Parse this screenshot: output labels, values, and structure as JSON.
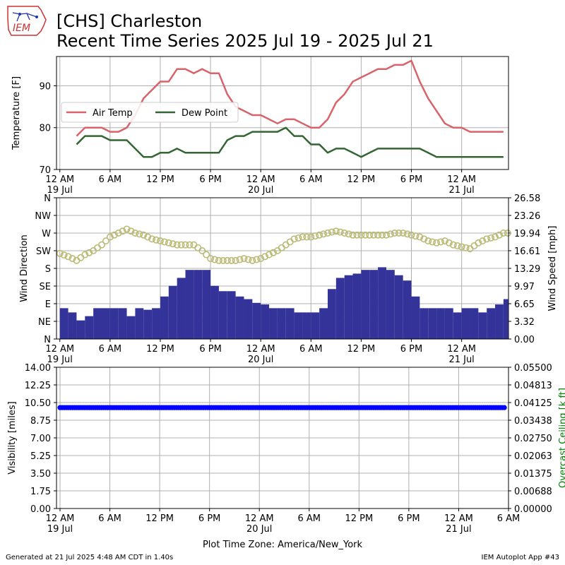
{
  "header": {
    "logo_text": "IEM",
    "title_line1": "[CHS] Charleston",
    "title_line2": "Recent Time Series 2025 Jul 19 - 2025 Jul 21"
  },
  "footer": {
    "generated": "Generated at 21 Jul 2025 4:48 AM CDT in 1.40s",
    "app": "IEM Autoplot App #43",
    "timezone": "Plot Time Zone: America/New_York"
  },
  "colors": {
    "air_temp": "#d9636b",
    "dew_point": "#336633",
    "wind_dir": "#bbbb77",
    "wind_speed": "#333399",
    "visibility": "#0000ff",
    "ceiling_axis": "#008000",
    "grid": "#b0b0b0"
  },
  "chart_data": [
    {
      "type": "line",
      "ylabel": "Temperature [F]",
      "ylim": [
        70,
        97
      ],
      "yticks": [
        70,
        80,
        90
      ],
      "xlim_hours": [
        -0.4,
        53.6
      ],
      "xticks": [
        {
          "hour": 0,
          "label": "12 AM",
          "sublabel": "19 Jul"
        },
        {
          "hour": 6,
          "label": "6 AM",
          "sublabel": ""
        },
        {
          "hour": 12,
          "label": "12 PM",
          "sublabel": ""
        },
        {
          "hour": 18,
          "label": "6 PM",
          "sublabel": ""
        },
        {
          "hour": 24,
          "label": "12 AM",
          "sublabel": "20 Jul"
        },
        {
          "hour": 30,
          "label": "6 AM",
          "sublabel": ""
        },
        {
          "hour": 36,
          "label": "12 PM",
          "sublabel": ""
        },
        {
          "hour": 42,
          "label": "6 PM",
          "sublabel": ""
        },
        {
          "hour": 48,
          "label": "12 AM",
          "sublabel": "21 Jul"
        }
      ],
      "grid": true,
      "legend_position": "center-left",
      "series": [
        {
          "name": "Air Temp",
          "x": [
            2,
            3,
            4,
            5,
            6,
            7,
            8,
            9,
            10,
            11,
            12,
            13,
            14,
            15,
            16,
            17,
            18,
            19,
            20,
            21,
            22,
            23,
            24,
            25,
            26,
            27,
            28,
            29,
            30,
            31,
            32,
            33,
            34,
            35,
            36,
            37,
            38,
            39,
            40,
            41,
            42,
            43,
            44,
            45,
            46,
            47,
            48,
            49,
            50,
            51,
            52,
            53
          ],
          "y": [
            78,
            80,
            80,
            80,
            79,
            79,
            80,
            83,
            87,
            89,
            91,
            91,
            94,
            94,
            93,
            94,
            93,
            93,
            88,
            85,
            84,
            83,
            83,
            82,
            81,
            82,
            82,
            81,
            80,
            80,
            82,
            86,
            88,
            91,
            92,
            93,
            94,
            94,
            95,
            95,
            96,
            91,
            87,
            84,
            81,
            80,
            80,
            79,
            79,
            79,
            79,
            79
          ]
        },
        {
          "name": "Dew Point",
          "x": [
            2,
            3,
            4,
            5,
            6,
            7,
            8,
            9,
            10,
            11,
            12,
            13,
            14,
            15,
            16,
            17,
            18,
            19,
            20,
            21,
            22,
            23,
            24,
            25,
            26,
            27,
            28,
            29,
            30,
            31,
            32,
            33,
            34,
            35,
            36,
            37,
            38,
            39,
            40,
            41,
            42,
            43,
            44,
            45,
            46,
            47,
            48,
            49,
            50,
            51,
            52,
            53
          ],
          "y": [
            76,
            78,
            78,
            78,
            77,
            77,
            77,
            75,
            73,
            73,
            74,
            74,
            75,
            74,
            74,
            74,
            74,
            74,
            77,
            78,
            78,
            79,
            79,
            79,
            79,
            80,
            78,
            78,
            76,
            76,
            74,
            75,
            75,
            74,
            73,
            74,
            75,
            75,
            75,
            75,
            75,
            75,
            74,
            73,
            73,
            73,
            73,
            73,
            73,
            73,
            73,
            73
          ]
        }
      ]
    },
    {
      "type": "bar",
      "ylabel": "Wind Direction",
      "ylabel_right": "Wind Speed [mph]",
      "ylim": [
        0,
        360
      ],
      "ylim_right": [
        0,
        26.58
      ],
      "direction_ticks": [
        "N",
        "NE",
        "E",
        "SE",
        "S",
        "SW",
        "W",
        "NW",
        "N"
      ],
      "speed_ticks": [
        "0.00",
        "3.32",
        "6.65",
        "9.97",
        "13.29",
        "16.61",
        "19.94",
        "23.26",
        "26.58"
      ],
      "grid": true,
      "series": [
        {
          "name": "Wind Speed",
          "x": [
            0,
            1,
            2,
            3,
            4,
            5,
            6,
            7,
            8,
            9,
            10,
            11,
            12,
            13,
            14,
            15,
            16,
            17,
            18,
            19,
            20,
            21,
            22,
            23,
            24,
            25,
            26,
            27,
            28,
            29,
            30,
            31,
            32,
            33,
            34,
            35,
            36,
            37,
            38,
            39,
            40,
            41,
            42,
            43,
            44,
            45,
            46,
            47,
            48,
            49,
            50,
            51,
            52,
            53
          ],
          "y": [
            5.8,
            5,
            3.5,
            4.3,
            5.8,
            5.8,
            5.8,
            5.8,
            4.3,
            5.8,
            5.5,
            5.8,
            8,
            10,
            11.5,
            13,
            13,
            13,
            10,
            9,
            9,
            8,
            7.5,
            6.8,
            6.5,
            5.8,
            5.8,
            5.8,
            5,
            5,
            5,
            5.8,
            9.4,
            11.5,
            12,
            12.3,
            13,
            13,
            13.5,
            13,
            12,
            11,
            8,
            5.8,
            5.8,
            5.8,
            5.8,
            5,
            5.8,
            5.8,
            5,
            5.8,
            6.5,
            7.5
          ]
        },
        {
          "name": "Wind Direction",
          "x": [
            0,
            1,
            2,
            3,
            4,
            5,
            6,
            7,
            8,
            9,
            10,
            11,
            12,
            13,
            14,
            15,
            16,
            17,
            18,
            19,
            20,
            21,
            22,
            23,
            24,
            25,
            26,
            27,
            28,
            29,
            30,
            31,
            32,
            33,
            34,
            35,
            36,
            37,
            38,
            39,
            40,
            41,
            42,
            43,
            44,
            45,
            46,
            47,
            48,
            49,
            50,
            51,
            52,
            53
          ],
          "y": [
            218,
            210,
            200,
            215,
            225,
            240,
            260,
            270,
            280,
            270,
            265,
            255,
            250,
            245,
            240,
            240,
            240,
            225,
            205,
            200,
            200,
            200,
            205,
            200,
            205,
            215,
            225,
            240,
            255,
            260,
            260,
            265,
            270,
            275,
            270,
            265,
            265,
            265,
            265,
            265,
            270,
            270,
            265,
            260,
            250,
            245,
            250,
            240,
            235,
            230,
            245,
            255,
            260,
            270
          ]
        }
      ]
    },
    {
      "type": "scatter",
      "ylabel": "Visibility [miles]",
      "ylabel_right": "Overcast Ceiling [k ft]",
      "ylim": [
        0,
        14
      ],
      "yticks": [
        "0.00",
        "1.75",
        "3.50",
        "5.25",
        "7.00",
        "8.75",
        "10.50",
        "12.25",
        "14.00"
      ],
      "yticks_right": [
        "0.00000",
        "0.00688",
        "0.01375",
        "0.02063",
        "0.02750",
        "0.03438",
        "0.04125",
        "0.04813",
        "0.05500"
      ],
      "xticks": [
        {
          "hour": 0,
          "label": "12 AM",
          "sublabel": "19 Jul"
        },
        {
          "hour": 6,
          "label": "6 AM",
          "sublabel": ""
        },
        {
          "hour": 12,
          "label": "12 PM",
          "sublabel": ""
        },
        {
          "hour": 18,
          "label": "6 PM",
          "sublabel": ""
        },
        {
          "hour": 24,
          "label": "12 AM",
          "sublabel": "20 Jul"
        },
        {
          "hour": 30,
          "label": "6 AM",
          "sublabel": ""
        },
        {
          "hour": 36,
          "label": "12 PM",
          "sublabel": ""
        },
        {
          "hour": 42,
          "label": "6 PM",
          "sublabel": ""
        },
        {
          "hour": 48,
          "label": "12 AM",
          "sublabel": "21 Jul"
        },
        {
          "hour": 54,
          "label": "6 AM",
          "sublabel": ""
        }
      ],
      "grid": true,
      "series": [
        {
          "name": "Visibility",
          "x_range": [
            0,
            53.5
          ],
          "y_constant": 10
        }
      ]
    }
  ]
}
